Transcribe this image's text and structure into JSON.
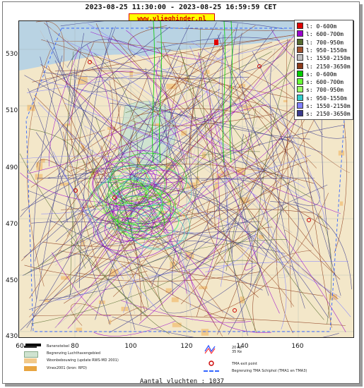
{
  "header": {
    "title": "2023-08-25 11:30:00 - 2023-08-25 16:59:59 CET",
    "site_label": "www.vlieghinder.nl"
  },
  "map": {
    "y_ticks": [
      "530",
      "510",
      "490",
      "470",
      "450",
      "430"
    ],
    "x_ticks": [
      "60",
      "80",
      "100",
      "120",
      "140",
      "160"
    ],
    "colors": {
      "land": "#f3e7c9",
      "water": "#b9d3e3",
      "grid": "#9aa"
    }
  },
  "legend": {
    "items": [
      {
        "label": "l: 0-600m",
        "color": "#e00000"
      },
      {
        "label": "l: 600-700m",
        "color": "#9900cc"
      },
      {
        "label": "l: 700-950m",
        "color": "#556b2f"
      },
      {
        "label": "l: 950-1550m",
        "color": "#a0522d"
      },
      {
        "label": "l: 1550-2150m",
        "color": "#c0c0c0"
      },
      {
        "label": "l: 2150-3650m",
        "color": "#8b3a1a"
      },
      {
        "label": "s: 0-600m",
        "color": "#00cc00"
      },
      {
        "label": "s: 600-700m",
        "color": "#66ff33"
      },
      {
        "label": "s: 700-950m",
        "color": "#99ff66"
      },
      {
        "label": "s: 950-1550m",
        "color": "#33cccc"
      },
      {
        "label": "s: 1550-2150m",
        "color": "#8080ff"
      },
      {
        "label": "s: 2150-3650m",
        "color": "#3a3a8c"
      }
    ]
  },
  "bottom_legend": {
    "items": [
      {
        "label": "Banenstelsel"
      },
      {
        "label": "Begrenzing Luchthavengebied"
      },
      {
        "label": "Woonbebouwing (update RWS-MD 2001)"
      },
      {
        "label": "Vinex2001 (bron: RPD)"
      },
      {
        "label": "20 Ke\n35 Ke"
      },
      {
        "label": "TMA exit point"
      },
      {
        "label": "Begrenzing TMA Schiphol  (TMA1 en TMA3)"
      }
    ]
  },
  "footer": {
    "count_label": "Aantal vluchten : 1037"
  }
}
